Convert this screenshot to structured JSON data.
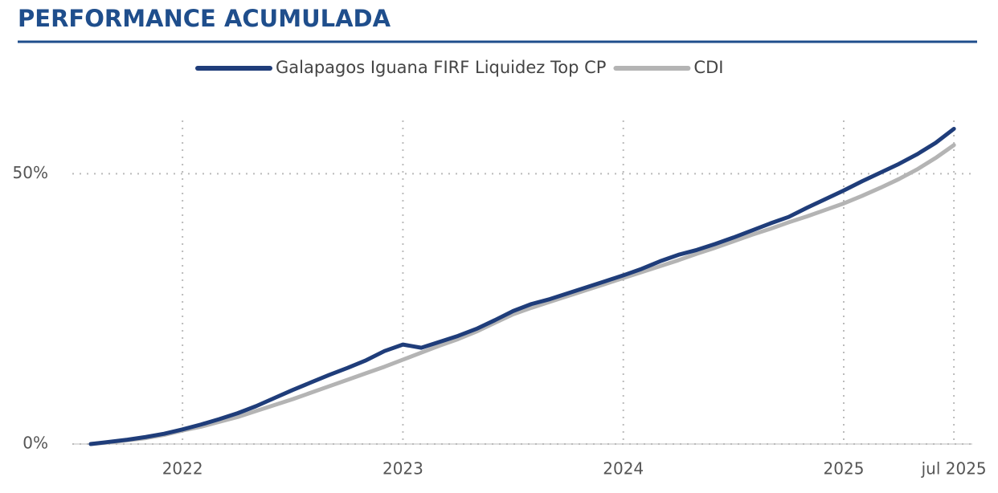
{
  "chart_data": {
    "type": "line",
    "title": "PERFORMANCE ACUMULADA",
    "x": [
      "2021-08",
      "2021-09",
      "2021-10",
      "2021-11",
      "2021-12",
      "2022-01",
      "2022-02",
      "2022-03",
      "2022-04",
      "2022-05",
      "2022-06",
      "2022-07",
      "2022-08",
      "2022-09",
      "2022-10",
      "2022-11",
      "2022-12",
      "2023-01",
      "2023-02",
      "2023-03",
      "2023-04",
      "2023-05",
      "2023-06",
      "2023-07",
      "2023-08",
      "2023-09",
      "2023-10",
      "2023-11",
      "2023-12",
      "2024-01",
      "2024-02",
      "2024-03",
      "2024-04",
      "2024-05",
      "2024-06",
      "2024-07",
      "2024-08",
      "2024-09",
      "2024-10",
      "2024-11",
      "2024-12",
      "2025-01",
      "2025-02",
      "2025-03",
      "2025-04",
      "2025-05",
      "2025-06",
      "2025-07"
    ],
    "series": [
      {
        "name": "Galapagos Iguana FIRF Liquidez Top CP",
        "color": "#1f3d7a",
        "values": [
          0,
          0.4,
          0.8,
          1.3,
          1.9,
          2.7,
          3.6,
          4.6,
          5.7,
          7.0,
          8.5,
          10.0,
          11.4,
          12.8,
          14.1,
          15.5,
          17.2,
          18.4,
          17.8,
          18.9,
          20.0,
          21.3,
          22.9,
          24.6,
          25.9,
          26.8,
          27.9,
          29.0,
          30.1,
          31.2,
          32.4,
          33.8,
          35.0,
          35.9,
          37.0,
          38.2,
          39.5,
          40.8,
          42.0,
          43.7,
          45.3,
          46.9,
          48.6,
          50.2,
          51.8,
          53.6,
          55.7,
          58.3
        ]
      },
      {
        "name": "CDI",
        "color": "#b4b4b4",
        "values": [
          0,
          0.3,
          0.7,
          1.1,
          1.7,
          2.5,
          3.2,
          4.1,
          5.0,
          6.1,
          7.2,
          8.3,
          9.5,
          10.7,
          11.9,
          13.1,
          14.3,
          15.6,
          16.9,
          18.2,
          19.4,
          20.8,
          22.4,
          24.0,
          25.2,
          26.3,
          27.4,
          28.5,
          29.6,
          30.7,
          31.8,
          32.9,
          34.0,
          35.2,
          36.3,
          37.5,
          38.7,
          39.8,
          41.0,
          42.1,
          43.3,
          44.5,
          45.9,
          47.4,
          49.0,
          50.8,
          52.9,
          55.3
        ]
      }
    ],
    "xlim": [
      "2021-07",
      "2025-08"
    ],
    "xticks": [
      {
        "value": "2022-01",
        "label": "2022"
      },
      {
        "value": "2023-01",
        "label": "2023"
      },
      {
        "value": "2024-01",
        "label": "2024"
      },
      {
        "value": "2025-01",
        "label": "2025"
      },
      {
        "value": "2025-07",
        "label": "jul 2025"
      }
    ],
    "ylim": [
      0,
      60
    ],
    "yticks": [
      {
        "value": 0,
        "label": "0%"
      },
      {
        "value": 50,
        "label": "50%"
      }
    ],
    "grid": true,
    "legend": "top"
  }
}
